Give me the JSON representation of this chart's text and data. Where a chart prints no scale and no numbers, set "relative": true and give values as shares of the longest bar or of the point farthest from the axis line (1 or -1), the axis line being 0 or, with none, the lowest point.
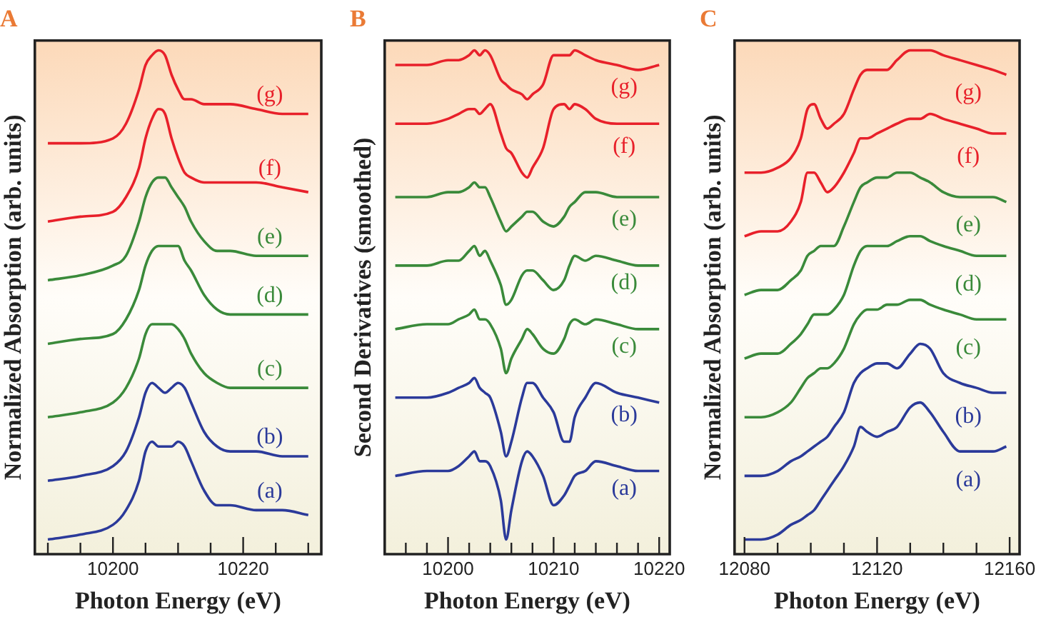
{
  "chart_data": [
    {
      "type": "line",
      "title": "A",
      "xlabel": "Photon Energy (eV)",
      "ylabel": "Normalized Absorption (arb. units)",
      "relative": true,
      "marker": "none",
      "xlim": [
        10188,
        10232
      ],
      "xticks": [
        {
          "value": 10190,
          "label": null
        },
        {
          "value": 10195,
          "label": null
        },
        10200,
        {
          "value": 10205,
          "label": null
        },
        {
          "value": 10210,
          "label": null
        },
        {
          "value": 10215,
          "label": null
        },
        10220,
        {
          "value": 10225,
          "label": null
        },
        {
          "value": 10230,
          "label": null
        }
      ],
      "x": [
        10190,
        10195,
        10200,
        10202,
        10204,
        10205,
        10206,
        10207,
        10208,
        10209,
        10210,
        10211,
        10212,
        10214,
        10216,
        10218,
        10222,
        10226,
        10230
      ],
      "series": [
        {
          "name": "(a)",
          "color": "#2b3a9a",
          "values": [
            0,
            0.01,
            0.03,
            0.06,
            0.12,
            0.18,
            0.2,
            0.19,
            0.19,
            0.19,
            0.2,
            0.19,
            0.16,
            0.1,
            0.07,
            0.07,
            0.06,
            0.06,
            0.05
          ]
        },
        {
          "name": "(b)",
          "color": "#2b3a9a",
          "values": [
            0.12,
            0.13,
            0.15,
            0.18,
            0.25,
            0.3,
            0.32,
            0.31,
            0.3,
            0.31,
            0.32,
            0.31,
            0.28,
            0.22,
            0.19,
            0.18,
            0.18,
            0.17,
            0.17
          ]
        },
        {
          "name": "(c)",
          "color": "#3a8a3a",
          "values": [
            0.25,
            0.26,
            0.28,
            0.31,
            0.37,
            0.42,
            0.44,
            0.44,
            0.44,
            0.44,
            0.43,
            0.41,
            0.38,
            0.34,
            0.32,
            0.31,
            0.31,
            0.31,
            0.31
          ]
        },
        {
          "name": "(d)",
          "color": "#3a8a3a",
          "values": [
            0.4,
            0.41,
            0.42,
            0.45,
            0.51,
            0.56,
            0.59,
            0.6,
            0.6,
            0.6,
            0.6,
            0.57,
            0.55,
            0.5,
            0.47,
            0.46,
            0.46,
            0.46,
            0.46
          ]
        },
        {
          "name": "(e)",
          "color": "#3a8a3a",
          "values": [
            0.53,
            0.54,
            0.56,
            0.58,
            0.65,
            0.7,
            0.73,
            0.74,
            0.74,
            0.72,
            0.7,
            0.68,
            0.65,
            0.61,
            0.59,
            0.59,
            0.58,
            0.58,
            0.58
          ]
        },
        {
          "name": "(f)",
          "color": "#e8202a",
          "values": [
            0.65,
            0.66,
            0.67,
            0.7,
            0.76,
            0.82,
            0.86,
            0.88,
            0.87,
            0.82,
            0.78,
            0.75,
            0.74,
            0.73,
            0.73,
            0.73,
            0.73,
            0.72,
            0.71
          ]
        },
        {
          "name": "(g)",
          "color": "#e8202a",
          "values": [
            0.81,
            0.81,
            0.82,
            0.85,
            0.92,
            0.97,
            0.99,
            1,
            0.99,
            0.95,
            0.92,
            0.9,
            0.9,
            0.89,
            0.89,
            0.89,
            0.88,
            0.87,
            0.87
          ]
        }
      ]
    },
    {
      "type": "line",
      "title": "B",
      "xlabel": "Photon Energy (eV)",
      "ylabel": "Second Derivatives (smoothed)",
      "relative": true,
      "marker": "none",
      "xlim": [
        10194,
        10221
      ],
      "xticks": [
        {
          "value": 10196,
          "label": null
        },
        {
          "value": 10198,
          "label": null
        },
        10200,
        {
          "value": 10202,
          "label": null
        },
        {
          "value": 10204,
          "label": null
        },
        {
          "value": 10206,
          "label": null
        },
        {
          "value": 10208,
          "label": null
        },
        10210,
        {
          "value": 10212,
          "label": null
        },
        {
          "value": 10214,
          "label": null
        },
        {
          "value": 10216,
          "label": null
        },
        {
          "value": 10218,
          "label": null
        },
        10220
      ],
      "x": [
        10195,
        10198,
        10200,
        10201,
        10202,
        10202.5,
        10203,
        10203.5,
        10204,
        10205,
        10205.5,
        10206,
        10207,
        10207.5,
        10208,
        10209,
        10210,
        10211,
        10211.5,
        10212,
        10213,
        10214,
        10216,
        10218,
        10220
      ],
      "series": [
        {
          "name": "(a)",
          "color": "#2b3a9a",
          "values": [
            0.13,
            0.14,
            0.14,
            0.15,
            0.17,
            0.18,
            0.16,
            0.16,
            0.15,
            0.08,
            0,
            0.06,
            0.16,
            0.18,
            0.17,
            0.13,
            0.07,
            0.09,
            0.11,
            0.13,
            0.14,
            0.16,
            0.15,
            0.14,
            0.14
          ]
        },
        {
          "name": "(b)",
          "color": "#2b3a9a",
          "values": [
            0.29,
            0.29,
            0.3,
            0.31,
            0.32,
            0.33,
            0.31,
            0.3,
            0.29,
            0.22,
            0.17,
            0.2,
            0.29,
            0.32,
            0.32,
            0.29,
            0.26,
            0.2,
            0.2,
            0.25,
            0.29,
            0.32,
            0.3,
            0.29,
            0.28
          ]
        },
        {
          "name": "(c)",
          "color": "#3a8a3a",
          "values": [
            0.43,
            0.44,
            0.44,
            0.45,
            0.46,
            0.47,
            0.45,
            0.45,
            0.44,
            0.39,
            0.34,
            0.37,
            0.41,
            0.43,
            0.42,
            0.39,
            0.38,
            0.41,
            0.44,
            0.45,
            0.44,
            0.45,
            0.44,
            0.43,
            0.43
          ]
        },
        {
          "name": "(d)",
          "color": "#3a8a3a",
          "values": [
            0.56,
            0.56,
            0.57,
            0.57,
            0.59,
            0.6,
            0.58,
            0.59,
            0.57,
            0.52,
            0.48,
            0.49,
            0.54,
            0.55,
            0.55,
            0.53,
            0.51,
            0.53,
            0.56,
            0.58,
            0.57,
            0.58,
            0.57,
            0.56,
            0.56
          ]
        },
        {
          "name": "(e)",
          "color": "#3a8a3a",
          "values": [
            0.7,
            0.7,
            0.71,
            0.71,
            0.72,
            0.73,
            0.72,
            0.72,
            0.7,
            0.65,
            0.63,
            0.64,
            0.66,
            0.67,
            0.67,
            0.65,
            0.64,
            0.66,
            0.68,
            0.69,
            0.71,
            0.71,
            0.7,
            0.7,
            0.7
          ]
        },
        {
          "name": "(f)",
          "color": "#e8202a",
          "values": [
            0.85,
            0.85,
            0.86,
            0.87,
            0.88,
            0.88,
            0.87,
            0.88,
            0.89,
            0.83,
            0.8,
            0.79,
            0.75,
            0.74,
            0.76,
            0.8,
            0.88,
            0.89,
            0.88,
            0.89,
            0.88,
            0.86,
            0.85,
            0.85,
            0.85
          ]
        },
        {
          "name": "(g)",
          "color": "#e8202a",
          "values": [
            0.97,
            0.97,
            0.98,
            0.98,
            0.99,
            1,
            0.99,
            1,
            0.99,
            0.94,
            0.93,
            0.92,
            0.91,
            0.9,
            0.91,
            0.93,
            0.99,
            0.99,
            0.99,
            1,
            0.99,
            0.98,
            0.97,
            0.96,
            0.97
          ]
        }
      ]
    },
    {
      "type": "line",
      "title": "C",
      "xlabel": "Photon Energy (eV)",
      "ylabel": "Normalized Absorption (arb. units)",
      "relative": true,
      "marker": "none",
      "xlim": [
        12077,
        12163
      ],
      "xticks": [
        12080,
        {
          "value": 12090,
          "label": null
        },
        {
          "value": 12100,
          "label": null
        },
        {
          "value": 12110,
          "label": null
        },
        12120,
        {
          "value": 12130,
          "label": null
        },
        {
          "value": 12140,
          "label": null
        },
        {
          "value": 12150,
          "label": null
        },
        12160
      ],
      "x": [
        12080,
        12085,
        12090,
        12094,
        12097,
        12099,
        12101,
        12103,
        12105,
        12107,
        12110,
        12113,
        12115,
        12117,
        12120,
        12123,
        12126,
        12130,
        12133,
        12136,
        12140,
        12145,
        12150,
        12155,
        12159
      ],
      "series": [
        {
          "name": "(a)",
          "color": "#2b3a9a",
          "values": [
            0,
            0,
            0.01,
            0.03,
            0.04,
            0.05,
            0.06,
            0.08,
            0.1,
            0.12,
            0.15,
            0.19,
            0.23,
            0.22,
            0.21,
            0.22,
            0.23,
            0.27,
            0.28,
            0.26,
            0.22,
            0.18,
            0.18,
            0.18,
            0.19
          ]
        },
        {
          "name": "(b)",
          "color": "#2b3a9a",
          "values": [
            0.13,
            0.13,
            0.14,
            0.16,
            0.17,
            0.18,
            0.19,
            0.2,
            0.21,
            0.23,
            0.26,
            0.32,
            0.34,
            0.35,
            0.36,
            0.36,
            0.35,
            0.38,
            0.4,
            0.39,
            0.34,
            0.32,
            0.31,
            0.3,
            0.3
          ]
        },
        {
          "name": "(c)",
          "color": "#3a8a3a",
          "values": [
            0.25,
            0.25,
            0.26,
            0.28,
            0.31,
            0.33,
            0.34,
            0.35,
            0.35,
            0.36,
            0.39,
            0.44,
            0.46,
            0.47,
            0.47,
            0.48,
            0.48,
            0.49,
            0.49,
            0.48,
            0.47,
            0.46,
            0.45,
            0.45,
            0.45
          ]
        },
        {
          "name": "(d)",
          "color": "#3a8a3a",
          "values": [
            0.37,
            0.38,
            0.38,
            0.4,
            0.42,
            0.44,
            0.46,
            0.46,
            0.46,
            0.47,
            0.5,
            0.56,
            0.59,
            0.6,
            0.6,
            0.6,
            0.61,
            0.62,
            0.62,
            0.61,
            0.6,
            0.59,
            0.58,
            0.58,
            0.58
          ]
        },
        {
          "name": "(e)",
          "color": "#3a8a3a",
          "values": [
            0.5,
            0.51,
            0.51,
            0.53,
            0.55,
            0.58,
            0.59,
            0.6,
            0.6,
            0.6,
            0.64,
            0.69,
            0.72,
            0.73,
            0.74,
            0.74,
            0.75,
            0.75,
            0.74,
            0.73,
            0.71,
            0.7,
            0.7,
            0.7,
            0.69
          ]
        },
        {
          "name": "(f)",
          "color": "#e8202a",
          "values": [
            0.62,
            0.63,
            0.63,
            0.65,
            0.69,
            0.75,
            0.75,
            0.73,
            0.71,
            0.72,
            0.75,
            0.79,
            0.82,
            0.82,
            0.83,
            0.84,
            0.85,
            0.86,
            0.86,
            0.87,
            0.86,
            0.85,
            0.84,
            0.83,
            0.83
          ]
        },
        {
          "name": "(g)",
          "color": "#e8202a",
          "values": [
            0.75,
            0.75,
            0.76,
            0.78,
            0.82,
            0.88,
            0.89,
            0.86,
            0.84,
            0.85,
            0.87,
            0.92,
            0.95,
            0.96,
            0.96,
            0.96,
            0.98,
            1,
            1,
            1,
            0.99,
            0.98,
            0.97,
            0.96,
            0.95
          ]
        }
      ]
    }
  ]
}
